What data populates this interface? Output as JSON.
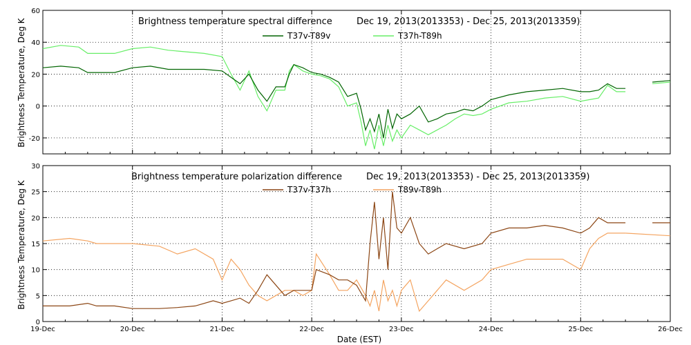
{
  "chart_data": [
    {
      "type": "line",
      "title": "Brightness temperature spectral difference",
      "date_range": "Dec 19, 2013(2013353) - Dec 25, 2013(2013359)",
      "ylabel": "Brightness Temperature, Deg K",
      "xlim": [
        "2013-12-19",
        "2013-12-26"
      ],
      "ylim": [
        -30,
        60
      ],
      "yticks": [
        -20,
        0,
        20,
        40,
        60
      ],
      "grid": true,
      "legend_position": "top-center",
      "series": [
        {
          "name": "T37v-T89v",
          "color": "#006400",
          "x": [
            19.0,
            19.2,
            19.4,
            19.5,
            19.6,
            19.8,
            20.0,
            20.2,
            20.4,
            20.6,
            20.8,
            21.0,
            21.1,
            21.2,
            21.3,
            21.4,
            21.5,
            21.6,
            21.7,
            21.75,
            21.8,
            21.9,
            22.0,
            22.1,
            22.2,
            22.3,
            22.4,
            22.5,
            22.55,
            22.6,
            22.65,
            22.7,
            22.75,
            22.8,
            22.85,
            22.9,
            22.95,
            23.0,
            23.1,
            23.2,
            23.3,
            23.4,
            23.5,
            23.6,
            23.7,
            23.8,
            23.9,
            24.0,
            24.2,
            24.4,
            24.6,
            24.8,
            25.0,
            25.1,
            25.2,
            25.3,
            25.4,
            25.5
          ],
          "y": [
            24,
            25,
            24,
            21,
            21,
            21,
            24,
            25,
            23,
            23,
            23,
            22,
            18,
            14,
            20,
            10,
            3,
            12,
            12,
            20,
            26,
            24,
            21,
            20,
            18,
            15,
            6,
            8,
            -2,
            -15,
            -8,
            -16,
            -5,
            -20,
            -2,
            -14,
            -5,
            -8,
            -5,
            0,
            -10,
            -8,
            -5,
            -4,
            -2,
            -3,
            0,
            4,
            7,
            9,
            10,
            11,
            9,
            9,
            10,
            14,
            11,
            11
          ]
        },
        {
          "name": "T37h-T89h",
          "color": "#66ee66",
          "x": [
            19.0,
            19.2,
            19.4,
            19.5,
            19.6,
            19.8,
            20.0,
            20.2,
            20.4,
            20.6,
            20.8,
            21.0,
            21.1,
            21.2,
            21.3,
            21.4,
            21.5,
            21.6,
            21.7,
            21.75,
            21.8,
            21.9,
            22.0,
            22.1,
            22.2,
            22.3,
            22.4,
            22.5,
            22.55,
            22.6,
            22.65,
            22.7,
            22.75,
            22.8,
            22.85,
            22.9,
            22.95,
            23.0,
            23.1,
            23.2,
            23.3,
            23.4,
            23.5,
            23.6,
            23.7,
            23.8,
            23.9,
            24.0,
            24.2,
            24.4,
            24.6,
            24.8,
            25.0,
            25.1,
            25.2,
            25.3,
            25.4,
            25.5
          ],
          "y": [
            36,
            38,
            37,
            33,
            33,
            33,
            36,
            37,
            35,
            34,
            33,
            31,
            20,
            10,
            22,
            6,
            -3,
            10,
            10,
            22,
            26,
            22,
            20,
            19,
            17,
            12,
            0,
            2,
            -10,
            -25,
            -15,
            -27,
            -12,
            -25,
            -12,
            -22,
            -15,
            -20,
            -12,
            -15,
            -18,
            -15,
            -12,
            -8,
            -5,
            -6,
            -5,
            -2,
            2,
            3,
            5,
            6,
            3,
            4,
            5,
            13,
            9,
            9
          ]
        }
      ],
      "ending_segments_after_gap": [
        {
          "name": "T37v-T89v",
          "x": [
            25.8,
            26.0
          ],
          "y": [
            15,
            16
          ]
        },
        {
          "name": "T37h-T89h",
          "x": [
            25.8,
            26.0
          ],
          "y": [
            14,
            15
          ]
        }
      ]
    },
    {
      "type": "line",
      "title": "Brightness temperature polarization difference",
      "date_range": "Dec 19, 2013(2013353) - Dec 25, 2013(2013359)",
      "xlabel": "Date (EST)",
      "ylabel": "Brightness Temperature, Deg K",
      "xlim": [
        "2013-12-19",
        "2013-12-26"
      ],
      "ylim": [
        0,
        30
      ],
      "yticks": [
        0,
        5,
        10,
        15,
        20,
        25,
        30
      ],
      "xticks": [
        "19-Dec",
        "20-Dec",
        "21-Dec",
        "22-Dec",
        "23-Dec",
        "24-Dec",
        "25-Dec",
        "26-Dec"
      ],
      "grid": true,
      "legend_position": "top-center",
      "series": [
        {
          "name": "T37v-T37h",
          "color": "#8b4513",
          "x": [
            19.0,
            19.3,
            19.5,
            19.6,
            19.8,
            20.0,
            20.3,
            20.5,
            20.7,
            20.9,
            21.0,
            21.1,
            21.2,
            21.3,
            21.4,
            21.5,
            21.6,
            21.7,
            21.8,
            21.9,
            22.0,
            22.05,
            22.2,
            22.3,
            22.4,
            22.5,
            22.6,
            22.65,
            22.7,
            22.75,
            22.8,
            22.85,
            22.9,
            22.95,
            23.0,
            23.1,
            23.2,
            23.3,
            23.4,
            23.5,
            23.7,
            23.9,
            24.0,
            24.2,
            24.4,
            24.6,
            24.8,
            25.0,
            25.1,
            25.2,
            25.3,
            25.35,
            25.5
          ],
          "y": [
            3,
            3,
            3.5,
            3,
            3,
            2.5,
            2.5,
            2.7,
            3,
            4,
            3.5,
            4,
            4.5,
            3.5,
            6,
            9,
            7,
            5,
            6,
            6,
            6,
            10,
            9,
            8,
            8,
            7,
            4,
            15,
            23,
            12,
            20,
            10,
            25,
            18,
            17,
            20,
            15,
            13,
            14,
            15,
            14,
            15,
            17,
            18,
            18,
            18.5,
            18,
            17,
            18,
            20,
            19,
            19,
            19
          ]
        },
        {
          "name": "T89v-T89h",
          "color": "#f4a460",
          "x": [
            19.0,
            19.3,
            19.5,
            19.6,
            19.8,
            20.0,
            20.3,
            20.5,
            20.7,
            20.9,
            21.0,
            21.1,
            21.2,
            21.3,
            21.4,
            21.5,
            21.6,
            21.7,
            21.8,
            21.9,
            22.0,
            22.05,
            22.2,
            22.3,
            22.4,
            22.5,
            22.6,
            22.65,
            22.7,
            22.75,
            22.8,
            22.85,
            22.9,
            22.95,
            23.0,
            23.1,
            23.2,
            23.3,
            23.4,
            23.5,
            23.7,
            23.9,
            24.0,
            24.2,
            24.4,
            24.6,
            24.8,
            25.0,
            25.1,
            25.2,
            25.3,
            25.35,
            25.5
          ],
          "y": [
            15.5,
            16,
            15.5,
            15,
            15,
            15,
            14.5,
            13,
            14,
            12,
            8,
            12,
            10,
            7,
            5,
            4,
            5,
            6,
            6,
            5,
            6,
            13,
            9,
            6,
            6,
            8,
            5,
            3,
            6,
            2,
            8,
            4,
            6,
            3,
            6,
            8,
            2,
            4,
            6,
            8,
            6,
            8,
            10,
            11,
            12,
            12,
            12,
            10,
            14,
            16,
            17,
            17,
            17
          ]
        }
      ],
      "ending_segments_after_gap": [
        {
          "name": "T37v-T37h",
          "x": [
            25.8,
            26.0
          ],
          "y": [
            19,
            19
          ]
        },
        {
          "name": "T89v-T89h",
          "x": [
            25.5,
            26.0
          ],
          "y": [
            17,
            16.5
          ]
        }
      ]
    }
  ]
}
